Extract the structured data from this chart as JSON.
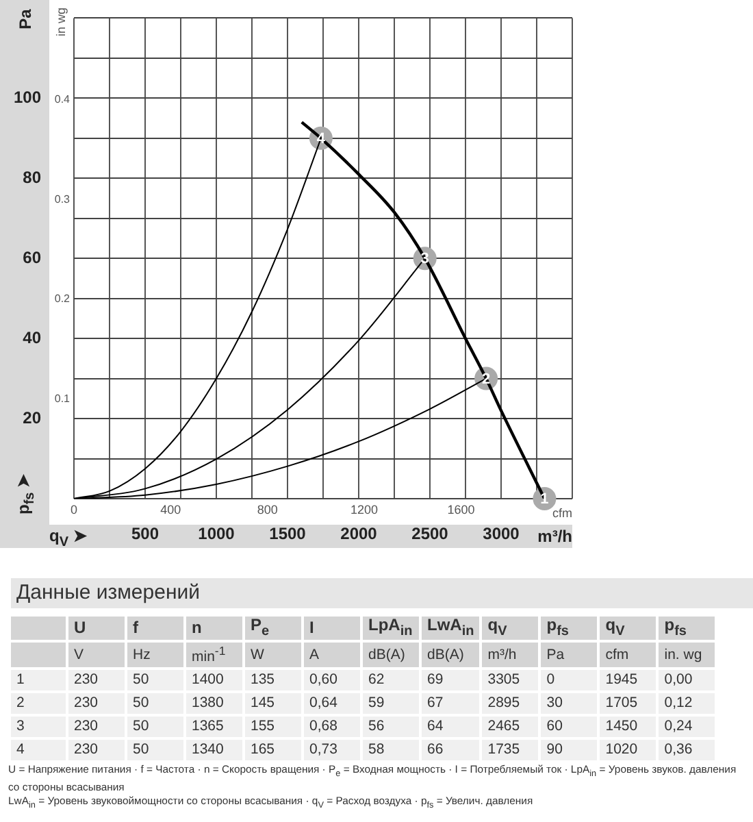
{
  "chart_data": {
    "type": "line",
    "xlabel": "m³/h",
    "x2label": "cfm",
    "ylabel": "Pa",
    "y2label": "in wg",
    "xlim": [
      0,
      3500
    ],
    "xticks": [
      {
        "value": 0,
        "label": null
      },
      {
        "value": 250,
        "label": null
      },
      500,
      {
        "value": 750,
        "label": null
      },
      1000,
      {
        "value": 1250,
        "label": null
      },
      1500,
      {
        "value": 1750,
        "label": null
      },
      2000,
      {
        "value": 2250,
        "label": null
      },
      2500,
      {
        "value": 2750,
        "label": null
      },
      3000,
      {
        "value": 3250,
        "label": null
      },
      {
        "value": 3500,
        "label": null
      }
    ],
    "x2lim": [
      0,
      2060
    ],
    "x2ticks": [
      0,
      400,
      800,
      1200,
      1600
    ],
    "ylim": [
      0,
      120
    ],
    "yticks": [
      {
        "value": 0,
        "label": null
      },
      {
        "value": 10,
        "label": null
      },
      20,
      {
        "value": 30,
        "label": null
      },
      40,
      {
        "value": 50,
        "label": null
      },
      60,
      {
        "value": 70,
        "label": null
      },
      80,
      {
        "value": 90,
        "label": null
      },
      100,
      {
        "value": 110,
        "label": null
      },
      {
        "value": 120,
        "label": null
      }
    ],
    "y2lim": [
      0,
      0.482
    ],
    "y2ticks": [
      0.1,
      0.2,
      0.3,
      0.4
    ],
    "grid": true,
    "legend": false,
    "marker": "none",
    "series": [
      {
        "type": "line",
        "color": "#000000",
        "x": [
          1600,
          1735,
          2000,
          2250,
          2465,
          2750,
          2895,
          3000,
          3305
        ],
        "values": [
          94,
          90,
          81,
          71.5,
          60,
          40,
          30,
          22,
          0
        ]
      },
      {
        "type": "line",
        "color": "#000000",
        "x": [
          0,
          250,
          500,
          750,
          1000,
          1250,
          1500,
          1735
        ],
        "values": [
          0,
          1.9,
          7.5,
          16.8,
          30,
          46.7,
          67.3,
          90
        ]
      },
      {
        "type": "line",
        "color": "#000000",
        "x": [
          0,
          500,
          1000,
          1500,
          2000,
          2465
        ],
        "values": [
          0,
          2.5,
          9.9,
          22.2,
          39.5,
          60
        ]
      },
      {
        "type": "line",
        "color": "#000000",
        "x": [
          0,
          500,
          1000,
          1500,
          2000,
          2500,
          2895
        ],
        "values": [
          0,
          0.9,
          3.6,
          8.1,
          14.3,
          22.4,
          30
        ]
      },
      {
        "type": "scatter",
        "color": "#aaaaaa",
        "marker": "circle",
        "x": [
          3305,
          2895,
          2465,
          1735
        ],
        "values": [
          0,
          30,
          60,
          90
        ]
      }
    ],
    "annotations": [
      "p$_{fs}$ ➤",
      "q$_{V}$ ➤",
      "Данные измерений",
      "\tU\tf\tn\tP$_{e}$\tI\tLpA$_{in}$\tLwA$_{in}$\tq$_{V}$\tp$_{fs}$\tq$_{V}$\tp$_{fs}$",
      "\tV\tHz\tmin$^{-1}$\tW\tA\tdB(A)\tdB(A)\tm³/h\tPa\tcfm\tin. wg",
      "1\t230\t50\t1400\t135\t0,60\t62\t69\t3305\t0\t1945\t0,00",
      "2\t230\t50\t1380\t145\t0,64\t59\t67\t2895\t30\t1705\t0,12",
      "3\t230\t50\t1365\t155\t0,68\t56\t64\t2465\t60\t1450\t0,24",
      "4\t230\t50\t1340\t165\t0,73\t58\t66\t1735\t90\t1020\t0,36",
      "U = Напряжение питания · f = Частота · n = Скорость вращения · P$_{e}$ = Входная мощность · I = Потребляемый ток · LpA$_{in}$ = Уровень звуков. давления со стороны всасывания",
      "LwA$_{in}$ = Уровень звуковоймощности со стороны всасывания · q$_{V}$ = Расход воздуха · p$_{fs}$ = Увелич. давления",
      {
        "text": "1",
        "x": 3305,
        "y": 0
      },
      {
        "text": "2",
        "x": 2895,
        "y": 30
      },
      {
        "text": "3",
        "x": 2465,
        "y": 60
      },
      {
        "text": "4",
        "x": 1735,
        "y": 90
      }
    ]
  }
}
